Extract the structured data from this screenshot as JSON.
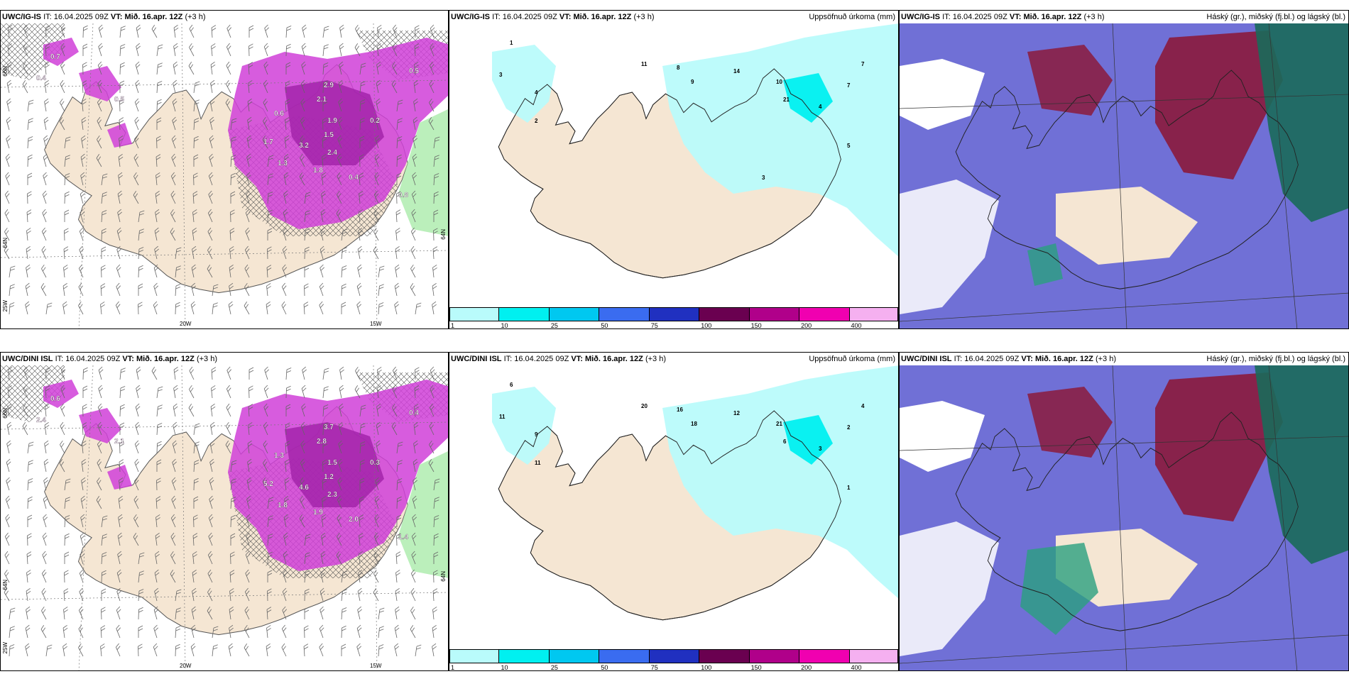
{
  "header_common": {
    "it_label": "IT:",
    "it_value": "16.04.2025 09Z",
    "vt_label": "VT:",
    "vt_value": "Mið. 16.apr. 12Z",
    "lead": "(+3 h)"
  },
  "rows": [
    {
      "model": "UWC/IG-IS"
    },
    {
      "model": "UWC/DINI ISL"
    }
  ],
  "panel_titles": {
    "precip": "Uppsöfnuð úrkoma (mm)",
    "clouds": "Háský (gr.), miðský (fj.bl.) og lágský (bl.)"
  },
  "axis_labels": {
    "lon_20w": "20W",
    "lon_15w": "15W",
    "lat_66n": "66N",
    "lat_64n": "64N",
    "lon_25w": "25W"
  },
  "colorbar": {
    "labels": [
      "1",
      "10",
      "25",
      "50",
      "75",
      "100",
      "150",
      "200",
      "400"
    ],
    "colors": [
      "#b9fbfb",
      "#00f0f0",
      "#00c8f0",
      "#3a6cf0",
      "#2030c0",
      "#6a0050",
      "#b0008a",
      "#f000b0",
      "#f5b0f0"
    ]
  },
  "colors": {
    "land": "#f5e6d3",
    "precip_purple": "#d040d8",
    "cyan_light": "#b9fbfb",
    "cloud_high": "#8b1a3c",
    "cloud_mid": "#1a6a5a",
    "cloud_low": "#4040c8"
  },
  "precip_labels_top": [
    "1",
    "3",
    "4",
    "2",
    "11",
    "8",
    "9",
    "14",
    "10",
    "21",
    "4",
    "7",
    "7",
    "5",
    "3"
  ],
  "precip_labels_bottom": [
    "6",
    "11",
    "9",
    "11",
    "20",
    "16",
    "18",
    "12",
    "21",
    "6",
    "3",
    "4",
    "2",
    "1"
  ],
  "cloud_mix_labels_top": [
    "0.7",
    "0.4",
    "0.5",
    "2.9",
    "2.1",
    "1.9",
    "1.5",
    "2.4",
    "1.8",
    "1.3",
    "0.4",
    "0.8",
    "0.6",
    "3.2",
    "1.7",
    "0.2",
    "0.5"
  ],
  "cloud_mix_labels_bottom": [
    "0.6",
    "2.4",
    "2.1",
    "3.7",
    "2.8",
    "1.5",
    "1.2",
    "2.3",
    "1.9",
    "1.8",
    "2.0",
    "1.4",
    "1.3",
    "4.6",
    "5.2",
    "0.3",
    "0.4"
  ]
}
